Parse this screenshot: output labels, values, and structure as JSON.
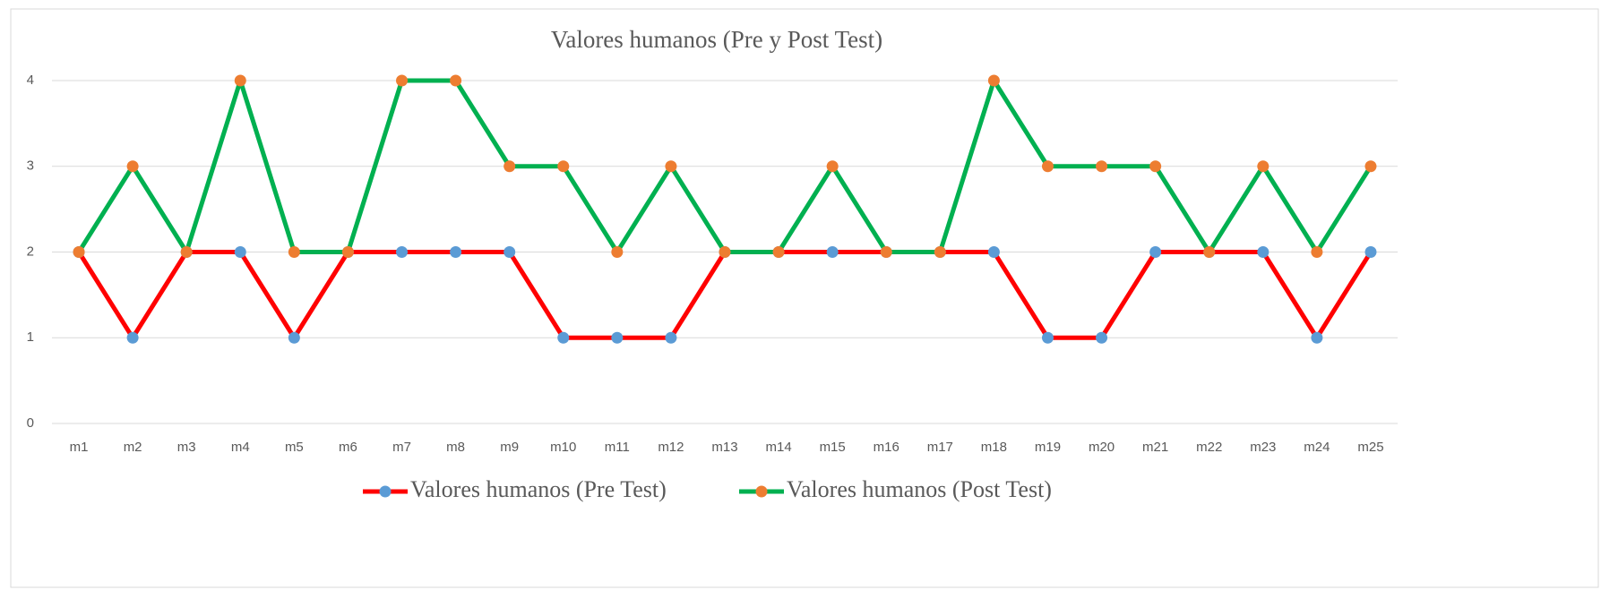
{
  "chart_data": {
    "type": "line",
    "title": "Valores humanos (Pre y Post Test)",
    "categories": [
      "m1",
      "m2",
      "m3",
      "m4",
      "m5",
      "m6",
      "m7",
      "m8",
      "m9",
      "m10",
      "m11",
      "m12",
      "m13",
      "m14",
      "m15",
      "m16",
      "m17",
      "m18",
      "m19",
      "m20",
      "m21",
      "m22",
      "m23",
      "m24",
      "m25"
    ],
    "series": [
      {
        "name": "Valores humanos (Pre Test)",
        "color": "#ff0000",
        "marker_color": "#5b9bd5",
        "values": [
          2,
          1,
          2,
          2,
          1,
          2,
          2,
          2,
          2,
          1,
          1,
          1,
          2,
          2,
          2,
          2,
          2,
          2,
          1,
          1,
          2,
          2,
          2,
          1,
          2
        ]
      },
      {
        "name": "Valores humanos (Post Test)",
        "color": "#00b050",
        "marker_color": "#ed7d31",
        "values": [
          2,
          3,
          2,
          4,
          2,
          2,
          4,
          4,
          3,
          3,
          2,
          3,
          2,
          2,
          3,
          2,
          2,
          4,
          3,
          3,
          3,
          2,
          3,
          2,
          3
        ]
      }
    ],
    "ylim": [
      0,
      4
    ],
    "yticks": [
      0,
      1,
      2,
      3,
      4
    ],
    "grid": true,
    "legend": "bottom"
  }
}
